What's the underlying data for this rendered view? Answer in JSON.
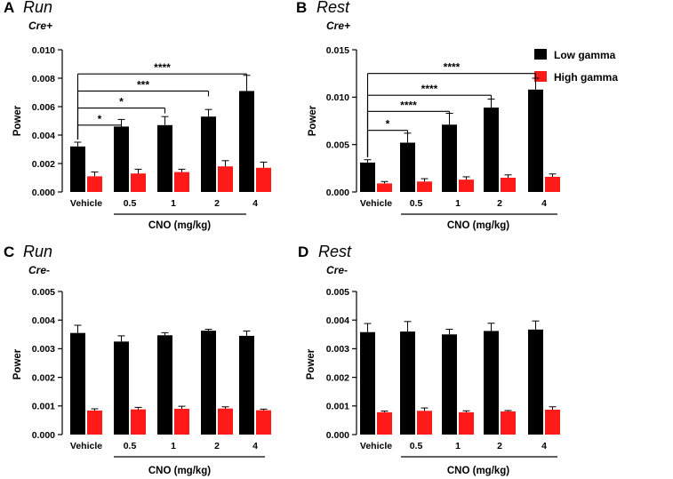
{
  "legend": {
    "items": [
      {
        "label": "Low gamma",
        "color": "#000000"
      },
      {
        "label": "High gamma",
        "color": "#ff1a1a"
      }
    ]
  },
  "chart_data": [
    {
      "type": "bar",
      "letter": "A",
      "condition": "Run",
      "genotype": "Cre+",
      "ylabel": "Power",
      "xlabel": "CNO (mg/kg)",
      "categories": [
        "Vehicle",
        "0.5",
        "1",
        "2",
        "4"
      ],
      "ylim": [
        0,
        0.01
      ],
      "yticks": [
        "0.000",
        "0.002",
        "0.004",
        "0.006",
        "0.008",
        "0.010"
      ],
      "ytick_values": [
        0,
        0.002,
        0.004,
        0.006,
        0.008,
        0.01
      ],
      "series": [
        {
          "name": "Low gamma",
          "values": [
            0.0032,
            0.0046,
            0.0047,
            0.0053,
            0.0071
          ],
          "errors": [
            0.0003,
            0.0005,
            0.0006,
            0.0005,
            0.0011
          ]
        },
        {
          "name": "High gamma",
          "values": [
            0.0011,
            0.0013,
            0.0014,
            0.0018,
            0.0017
          ],
          "errors": [
            0.0003,
            0.0003,
            0.0002,
            0.0004,
            0.0004
          ]
        }
      ],
      "significance": [
        {
          "to_index": 1,
          "label": "*",
          "level_value": 0.0047
        },
        {
          "to_index": 2,
          "label": "*",
          "level_value": 0.0059
        },
        {
          "to_index": 3,
          "label": "***",
          "level_value": 0.0071
        },
        {
          "to_index": 4,
          "label": "****",
          "level_value": 0.0083
        }
      ]
    },
    {
      "type": "bar",
      "letter": "B",
      "condition": "Rest",
      "genotype": "Cre+",
      "ylabel": "Power",
      "xlabel": "CNO (mg/kg)",
      "categories": [
        "Vehicle",
        "0.5",
        "1",
        "2",
        "4"
      ],
      "ylim": [
        0,
        0.015
      ],
      "yticks": [
        "0.000",
        "0.005",
        "0.010",
        "0.015"
      ],
      "ytick_values": [
        0,
        0.005,
        0.01,
        0.015
      ],
      "series": [
        {
          "name": "Low gamma",
          "values": [
            0.0031,
            0.0052,
            0.0071,
            0.0089,
            0.0108
          ],
          "errors": [
            0.0003,
            0.001,
            0.0012,
            0.0009,
            0.0012
          ]
        },
        {
          "name": "High gamma",
          "values": [
            0.0009,
            0.0011,
            0.0013,
            0.0015,
            0.0016
          ],
          "errors": [
            0.0002,
            0.0003,
            0.0003,
            0.0003,
            0.0003
          ]
        }
      ],
      "significance": [
        {
          "to_index": 1,
          "label": "*",
          "level_value": 0.0065
        },
        {
          "to_index": 2,
          "label": "****",
          "level_value": 0.0085
        },
        {
          "to_index": 3,
          "label": "****",
          "level_value": 0.0102
        },
        {
          "to_index": 4,
          "label": "****",
          "level_value": 0.0125
        }
      ]
    },
    {
      "type": "bar",
      "letter": "C",
      "condition": "Run",
      "genotype": "Cre-",
      "ylabel": "Power",
      "xlabel": "CNO (mg/kg)",
      "categories": [
        "Vehicle",
        "0.5",
        "1",
        "2",
        "4"
      ],
      "ylim": [
        0,
        0.005
      ],
      "yticks": [
        "0.000",
        "0.001",
        "0.002",
        "0.003",
        "0.004",
        "0.005"
      ],
      "ytick_values": [
        0,
        0.001,
        0.002,
        0.003,
        0.004,
        0.005
      ],
      "series": [
        {
          "name": "Low gamma",
          "values": [
            0.00355,
            0.00325,
            0.00347,
            0.00363,
            0.00345
          ],
          "errors": [
            0.00027,
            0.0002,
            9e-05,
            5e-05,
            0.00017
          ]
        },
        {
          "name": "High gamma",
          "values": [
            0.00084,
            0.00088,
            0.0009,
            0.00091,
            0.00085
          ],
          "errors": [
            6e-05,
            7e-05,
            9e-05,
            6e-05,
            4e-05
          ]
        }
      ],
      "significance": []
    },
    {
      "type": "bar",
      "letter": "D",
      "condition": "Rest",
      "genotype": "Cre-",
      "ylabel": "Power",
      "xlabel": "CNO (mg/kg)",
      "categories": [
        "Vehicle",
        "0.5",
        "1",
        "2",
        "4"
      ],
      "ylim": [
        0,
        0.005
      ],
      "yticks": [
        "0.000",
        "0.001",
        "0.002",
        "0.003",
        "0.004",
        "0.005"
      ],
      "ytick_values": [
        0,
        0.001,
        0.002,
        0.003,
        0.004,
        0.005
      ],
      "series": [
        {
          "name": "Low gamma",
          "values": [
            0.00358,
            0.0036,
            0.0035,
            0.00362,
            0.00367
          ],
          "errors": [
            0.0003,
            0.00035,
            0.00018,
            0.00027,
            0.0003
          ]
        },
        {
          "name": "High gamma",
          "values": [
            0.00078,
            0.00083,
            0.00078,
            0.00081,
            0.00087
          ],
          "errors": [
            4e-05,
            0.0001,
            5e-05,
            3e-05,
            0.0001
          ]
        }
      ],
      "significance": []
    }
  ]
}
